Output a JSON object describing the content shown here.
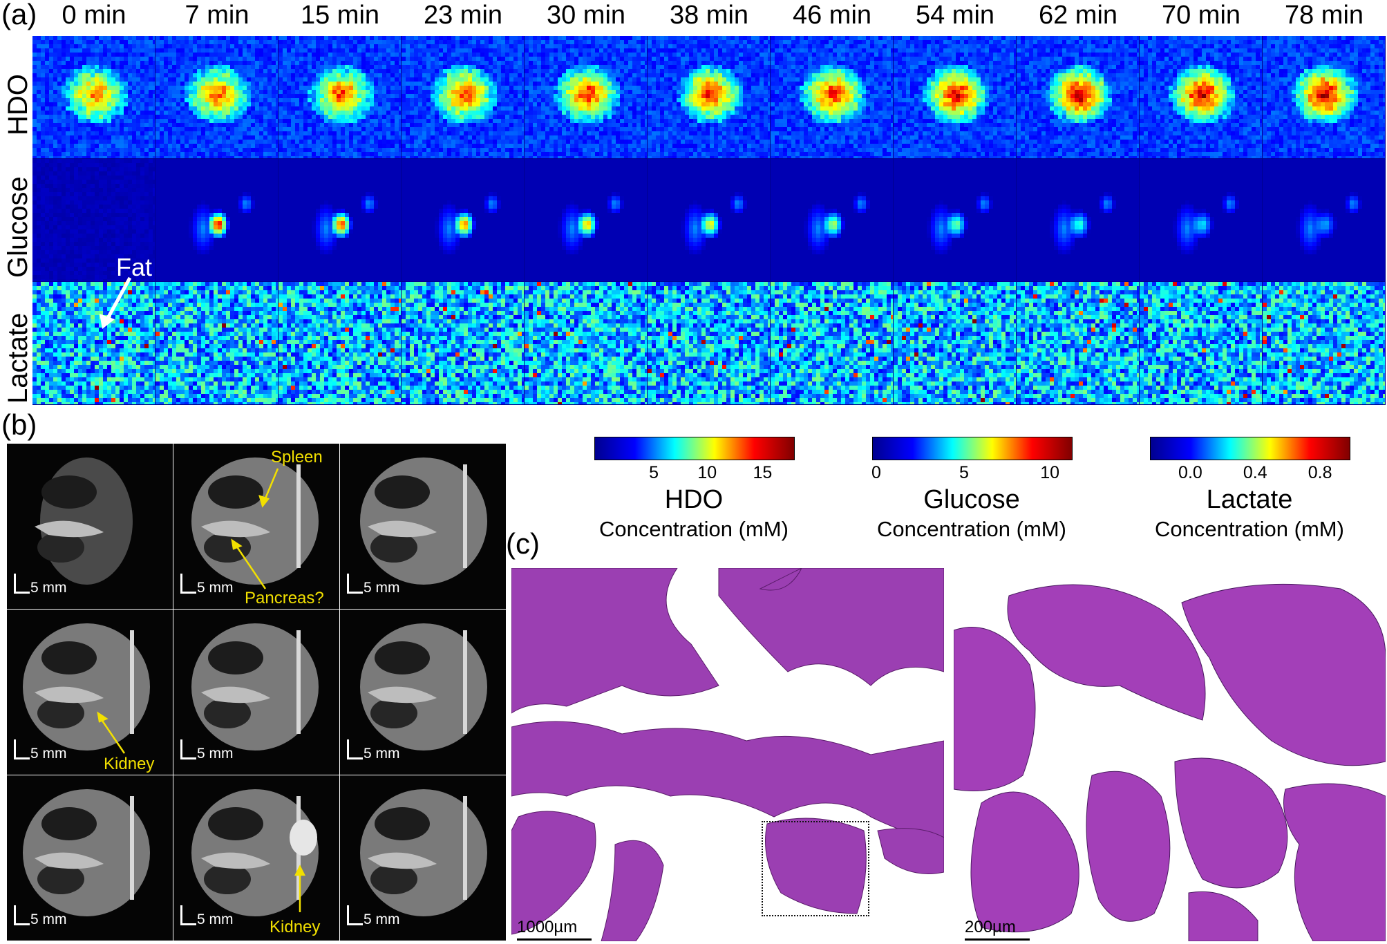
{
  "panel_a": {
    "letter": "(a)",
    "time_points": [
      "0 min",
      "7 min",
      "15 min",
      "23 min",
      "30 min",
      "38 min",
      "46 min",
      "54 min",
      "62 min",
      "70 min",
      "78 min"
    ],
    "rows": [
      "HDO",
      "Glucose",
      "Lactate"
    ],
    "annotation_fat": "Fat"
  },
  "panel_b": {
    "letter": "(b)",
    "scale_label": "5 mm",
    "labels": {
      "spleen": "Spleen",
      "pancreas": "Pancreas?",
      "kidney_1": "Kidney",
      "kidney_2": "Kidney"
    },
    "annotation_color": "#f2e000"
  },
  "colorbars": [
    {
      "title": "HDO",
      "subtitle": "Concentration (mM)",
      "ticks": [
        "5",
        "10",
        "15"
      ]
    },
    {
      "title": "Glucose",
      "subtitle": "Concentration (mM)",
      "ticks": [
        "0",
        "5",
        "10"
      ]
    },
    {
      "title": "Lactate",
      "subtitle": "Concentration (mM)",
      "ticks": [
        "0.0",
        "0.4",
        "0.8"
      ]
    }
  ],
  "panel_c": {
    "letter": "(c)",
    "scale_left": "1000µm",
    "scale_right": "200µm"
  },
  "colors": {
    "jet_low": "#00008f",
    "jet_high": "#800000",
    "tissue": "#9a3fb0",
    "tissue_dark": "#7a2a9a"
  }
}
